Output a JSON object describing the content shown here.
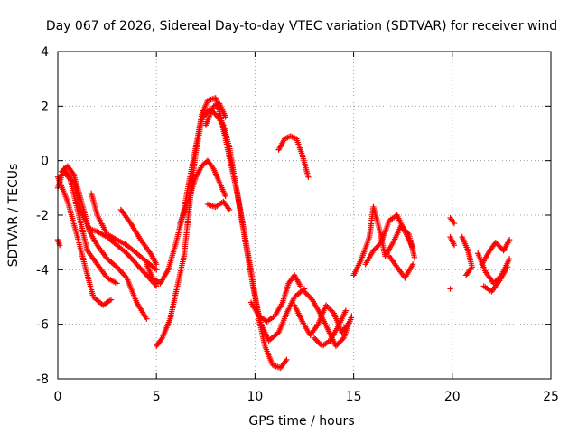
{
  "chart_data": {
    "type": "scatter",
    "title": "Day 067 of 2026, Sidereal Day-to-day VTEC variation (SDTVAR) for receiver wind",
    "xlabel": "GPS time / hours",
    "ylabel": "SDTVAR / TECUs",
    "xlim": [
      0,
      25
    ],
    "ylim": [
      -8,
      4
    ],
    "xticks": [
      0,
      5,
      10,
      15,
      20,
      25
    ],
    "yticks": [
      -8,
      -6,
      -4,
      -2,
      0,
      2,
      4
    ],
    "grid": true,
    "marker": "+",
    "series": [
      {
        "name": "SDTVAR",
        "color": "#ff0000",
        "tracks": [
          [
            [
              0.0,
              -2.9
            ],
            [
              0.1,
              -3.1
            ]
          ],
          [
            [
              0.0,
              -0.6
            ],
            [
              0.5,
              -1.5
            ],
            [
              1.0,
              -2.8
            ],
            [
              1.5,
              -4.2
            ],
            [
              1.8,
              -5.0
            ],
            [
              2.3,
              -5.3
            ],
            [
              2.7,
              -5.1
            ]
          ],
          [
            [
              0.0,
              -1.0
            ],
            [
              0.3,
              -0.3
            ],
            [
              0.6,
              -0.6
            ],
            [
              1.0,
              -1.8
            ],
            [
              1.5,
              -3.3
            ],
            [
              2.0,
              -3.8
            ],
            [
              2.5,
              -4.3
            ],
            [
              3.0,
              -4.5
            ]
          ],
          [
            [
              0.2,
              -0.4
            ],
            [
              0.5,
              -0.2
            ],
            [
              0.8,
              -0.5
            ],
            [
              1.2,
              -1.5
            ],
            [
              1.6,
              -2.6
            ],
            [
              2.0,
              -3.1
            ],
            [
              2.5,
              -3.6
            ],
            [
              3.0,
              -3.9
            ],
            [
              3.5,
              -4.3
            ],
            [
              4.0,
              -5.2
            ],
            [
              4.5,
              -5.8
            ]
          ],
          [
            [
              0.4,
              -0.5
            ],
            [
              0.8,
              -0.8
            ],
            [
              1.2,
              -1.9
            ],
            [
              1.6,
              -2.5
            ],
            [
              2.0,
              -2.6
            ],
            [
              2.5,
              -2.8
            ],
            [
              3.0,
              -3.1
            ],
            [
              3.5,
              -3.4
            ],
            [
              4.0,
              -3.8
            ],
            [
              4.5,
              -4.2
            ],
            [
              5.0,
              -4.6
            ]
          ],
          [
            [
              1.7,
              -1.2
            ],
            [
              2.0,
              -2.0
            ],
            [
              2.5,
              -2.7
            ],
            [
              3.0,
              -2.9
            ],
            [
              3.5,
              -3.1
            ],
            [
              4.0,
              -3.4
            ],
            [
              4.5,
              -3.7
            ],
            [
              5.0,
              -4.0
            ]
          ],
          [
            [
              3.2,
              -1.8
            ],
            [
              3.7,
              -2.3
            ],
            [
              4.2,
              -2.9
            ],
            [
              4.7,
              -3.4
            ],
            [
              5.0,
              -3.8
            ]
          ],
          [
            [
              4.5,
              -3.8
            ],
            [
              4.8,
              -4.3
            ],
            [
              5.2,
              -4.5
            ],
            [
              5.6,
              -4.0
            ],
            [
              6.0,
              -3.0
            ],
            [
              6.4,
              -1.8
            ],
            [
              6.7,
              -0.6
            ],
            [
              7.0,
              0.5
            ],
            [
              7.3,
              1.7
            ],
            [
              7.6,
              2.2
            ],
            [
              8.0,
              2.3
            ],
            [
              8.2,
              1.8
            ],
            [
              8.5,
              0.8
            ],
            [
              8.8,
              -0.2
            ],
            [
              9.1,
              -1.2
            ],
            [
              9.4,
              -2.5
            ],
            [
              9.7,
              -3.8
            ],
            [
              10.0,
              -5.0
            ],
            [
              10.3,
              -6.0
            ],
            [
              10.7,
              -6.6
            ],
            [
              11.2,
              -6.3
            ],
            [
              11.6,
              -5.6
            ],
            [
              12.0,
              -5.0
            ],
            [
              12.5,
              -4.7
            ]
          ],
          [
            [
              5.0,
              -6.8
            ],
            [
              5.3,
              -6.5
            ],
            [
              5.7,
              -5.8
            ],
            [
              6.0,
              -4.8
            ],
            [
              6.4,
              -3.5
            ],
            [
              6.7,
              -1.5
            ],
            [
              7.0,
              0.3
            ],
            [
              7.3,
              1.5
            ],
            [
              7.7,
              1.9
            ],
            [
              8.0,
              1.7
            ],
            [
              8.4,
              1.3
            ],
            [
              8.7,
              0.5
            ],
            [
              9.0,
              -0.8
            ],
            [
              9.3,
              -2.0
            ],
            [
              9.6,
              -3.2
            ],
            [
              9.9,
              -4.5
            ],
            [
              10.2,
              -5.8
            ],
            [
              10.5,
              -6.8
            ],
            [
              10.9,
              -7.5
            ],
            [
              11.3,
              -7.6
            ],
            [
              11.6,
              -7.3
            ]
          ],
          [
            [
              6.2,
              -2.3
            ],
            [
              6.6,
              -1.5
            ],
            [
              7.0,
              -0.6
            ],
            [
              7.3,
              -0.2
            ],
            [
              7.6,
              0.0
            ],
            [
              7.9,
              -0.3
            ],
            [
              8.2,
              -0.8
            ],
            [
              8.5,
              -1.3
            ]
          ],
          [
            [
              7.6,
              -1.6
            ],
            [
              8.0,
              -1.7
            ],
            [
              8.4,
              -1.5
            ],
            [
              8.7,
              -1.8
            ]
          ],
          [
            [
              7.5,
              1.3
            ],
            [
              7.9,
              2.0
            ],
            [
              8.2,
              2.1
            ],
            [
              8.5,
              1.6
            ]
          ],
          [
            [
              9.8,
              -5.2
            ],
            [
              10.2,
              -5.7
            ],
            [
              10.6,
              -5.9
            ],
            [
              11.0,
              -5.7
            ],
            [
              11.4,
              -5.2
            ],
            [
              11.7,
              -4.5
            ],
            [
              12.0,
              -4.2
            ],
            [
              12.3,
              -4.6
            ]
          ],
          [
            [
              11.2,
              0.4
            ],
            [
              11.5,
              0.8
            ],
            [
              11.8,
              0.9
            ],
            [
              12.1,
              0.8
            ],
            [
              12.4,
              0.2
            ],
            [
              12.7,
              -0.6
            ]
          ],
          [
            [
              12.0,
              -5.3
            ],
            [
              12.4,
              -5.9
            ],
            [
              12.8,
              -6.4
            ],
            [
              13.2,
              -6.0
            ],
            [
              13.6,
              -5.3
            ],
            [
              14.0,
              -5.6
            ],
            [
              14.4,
              -6.3
            ],
            [
              14.8,
              -5.9
            ]
          ],
          [
            [
              12.5,
              -4.8
            ],
            [
              12.9,
              -5.1
            ],
            [
              13.3,
              -5.6
            ],
            [
              13.7,
              -6.2
            ],
            [
              14.1,
              -6.8
            ],
            [
              14.5,
              -6.5
            ],
            [
              14.9,
              -5.7
            ]
          ],
          [
            [
              13.0,
              -6.5
            ],
            [
              13.4,
              -6.8
            ],
            [
              13.8,
              -6.6
            ],
            [
              14.2,
              -6.1
            ],
            [
              14.6,
              -5.5
            ]
          ],
          [
            [
              15.0,
              -4.2
            ],
            [
              15.4,
              -3.6
            ],
            [
              15.8,
              -2.8
            ],
            [
              16.0,
              -1.7
            ],
            [
              16.3,
              -2.5
            ],
            [
              16.6,
              -3.5
            ],
            [
              17.0,
              -3.0
            ],
            [
              17.4,
              -2.4
            ],
            [
              17.8,
              -2.7
            ],
            [
              18.1,
              -3.6
            ]
          ],
          [
            [
              15.6,
              -3.8
            ],
            [
              16.0,
              -3.3
            ],
            [
              16.4,
              -3.0
            ],
            [
              16.8,
              -2.2
            ],
            [
              17.2,
              -2.0
            ],
            [
              17.6,
              -2.6
            ],
            [
              18.0,
              -3.2
            ]
          ],
          [
            [
              16.8,
              -3.5
            ],
            [
              17.2,
              -3.9
            ],
            [
              17.6,
              -4.3
            ],
            [
              18.0,
              -3.8
            ]
          ],
          [
            [
              19.9,
              -2.1
            ],
            [
              20.1,
              -2.3
            ]
          ],
          [
            [
              19.9,
              -2.8
            ],
            [
              20.1,
              -3.1
            ]
          ],
          [
            [
              19.9,
              -4.7
            ]
          ],
          [
            [
              20.5,
              -2.8
            ],
            [
              20.8,
              -3.3
            ],
            [
              21.0,
              -3.9
            ],
            [
              20.7,
              -4.2
            ]
          ],
          [
            [
              21.3,
              -3.4
            ],
            [
              21.7,
              -4.1
            ],
            [
              22.1,
              -4.5
            ],
            [
              22.5,
              -4.2
            ],
            [
              22.9,
              -3.6
            ]
          ],
          [
            [
              21.5,
              -3.8
            ],
            [
              21.9,
              -3.3
            ],
            [
              22.2,
              -3.0
            ],
            [
              22.6,
              -3.3
            ],
            [
              22.9,
              -2.9
            ]
          ],
          [
            [
              21.6,
              -4.6
            ],
            [
              22.0,
              -4.8
            ],
            [
              22.4,
              -4.4
            ],
            [
              22.8,
              -3.9
            ]
          ]
        ]
      }
    ]
  }
}
